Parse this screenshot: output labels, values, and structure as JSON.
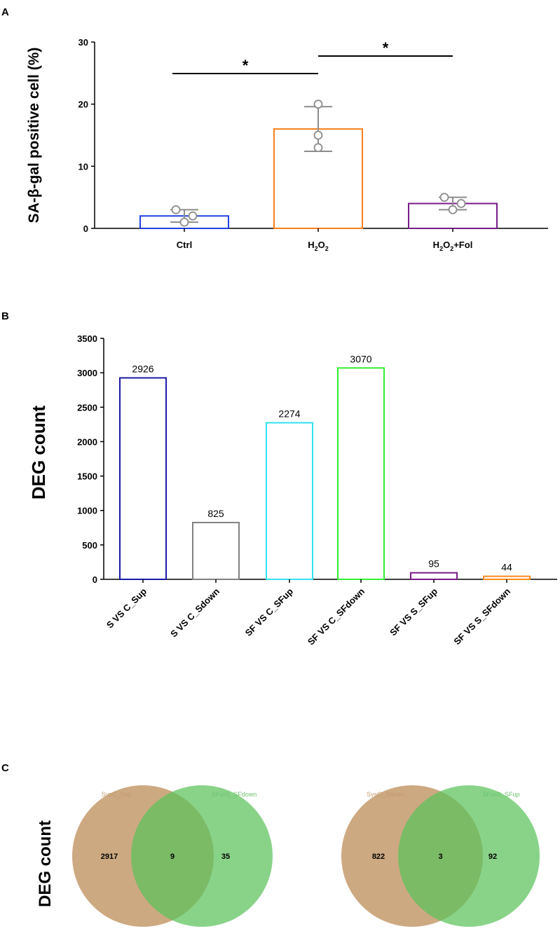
{
  "chart_data": [
    {
      "panel": "A",
      "type": "bar",
      "ylabel": "SA-β-gal positive cell (%)",
      "ylim": [
        0,
        30
      ],
      "yticks": [
        "0",
        "10",
        "20",
        "30"
      ],
      "categories": [
        {
          "base": "Ctrl",
          "sub1": "",
          "mid": "",
          "sub2": "",
          "tail": ""
        },
        {
          "base": "H",
          "sub1": "2",
          "mid": "O",
          "sub2": "2",
          "tail": ""
        },
        {
          "base": "H",
          "sub1": "2",
          "mid": "O",
          "sub2": "2",
          "tail": "+Fol"
        }
      ],
      "values": [
        2,
        16,
        4
      ],
      "error": [
        [
          1,
          3
        ],
        [
          12.4,
          19.6
        ],
        [
          3,
          5
        ]
      ],
      "points": [
        [
          3,
          1,
          2
        ],
        [
          20,
          15,
          13
        ],
        [
          5,
          3,
          4
        ]
      ],
      "colors": [
        "#1f3fe0",
        "#ff7f1a",
        "#7a1a8a"
      ],
      "significance": [
        {
          "from": 0,
          "to": 1,
          "label": "*"
        },
        {
          "from": 1,
          "to": 2,
          "label": "*"
        }
      ]
    },
    {
      "panel": "B",
      "type": "bar",
      "ylabel": "DEG count",
      "ylim": [
        0,
        3500
      ],
      "yticks": [
        "0",
        "500",
        "1000",
        "1500",
        "2000",
        "2500",
        "3000",
        "3500"
      ],
      "categories": [
        "S VS C_Sup",
        "S VS C_Sdown",
        "SF VS C_SFup",
        "SF VS C_SFdown",
        "SF VS S_SFup",
        "SF VS S_SFdown"
      ],
      "values": [
        2926,
        825,
        2274,
        3070,
        95,
        44
      ],
      "labels": [
        "2926",
        "825",
        "2274",
        "3070",
        "95",
        "44"
      ],
      "colors": [
        "#1a1aa8",
        "#808080",
        "#33e0f0",
        "#33ee33",
        "#7a1a8a",
        "#ff8a1a"
      ]
    },
    {
      "panel": "C",
      "type": "venn",
      "ylabel": "DEG count",
      "diagrams": [
        {
          "left_label": "SvsC_Sup",
          "right_label": "SFvsS_SFdown",
          "left_only": "2917",
          "overlap": "9",
          "right_only": "35"
        },
        {
          "left_label": "SvsC_Sdown",
          "right_label": "SFvsS_SFup",
          "left_only": "822",
          "overlap": "3",
          "right_only": "92"
        }
      ],
      "colors": [
        "#c49a6c",
        "#5cc25c"
      ]
    }
  ],
  "panels": {
    "a": "A",
    "b": "B",
    "c": "C"
  }
}
